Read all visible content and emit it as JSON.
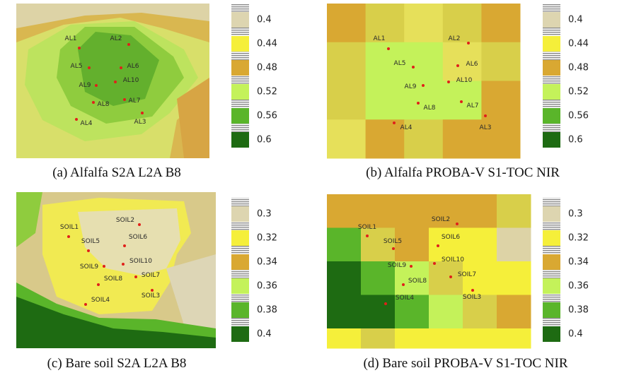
{
  "panels": [
    {
      "caption": "(a) Alfalfa S2A L2A B8",
      "points": [
        "AL1",
        "AL2",
        "AL5",
        "AL6",
        "AL9",
        "AL10",
        "AL8",
        "AL7",
        "AL3",
        "AL4"
      ],
      "colorbar": [
        "0.4",
        "0.44",
        "0.48",
        "0.52",
        "0.56",
        "0.6"
      ]
    },
    {
      "caption": "(b) Alfalfa PROBA-V S1-TOC NIR",
      "points": [
        "AL1",
        "AL2",
        "AL5",
        "AL6",
        "AL9",
        "AL10",
        "AL8",
        "AL7",
        "AL3",
        "AL4"
      ],
      "colorbar": [
        "0.4",
        "0.44",
        "0.48",
        "0.52",
        "0.56",
        "0.6"
      ]
    },
    {
      "caption": "(c) Bare soil S2A L2A B8",
      "points": [
        "SOIL1",
        "SOIL2",
        "SOIL5",
        "SOIL6",
        "SOIL9",
        "SOIL10",
        "SOIL8",
        "SOIL7",
        "SOIL3",
        "SOIL4"
      ],
      "colorbar": [
        "0.3",
        "0.32",
        "0.34",
        "0.36",
        "0.38",
        "0.4"
      ]
    },
    {
      "caption": "(d) Bare soil PROBA-V S1-TOC NIR",
      "points": [
        "SOIL1",
        "SOIL2",
        "SOIL5",
        "SOIL6",
        "SOIL9",
        "SOIL10",
        "SOIL8",
        "SOIL7",
        "SOIL3",
        "SOIL4"
      ],
      "colorbar": [
        "0.3",
        "0.32",
        "0.34",
        "0.36",
        "0.38",
        "0.4"
      ]
    }
  ]
}
